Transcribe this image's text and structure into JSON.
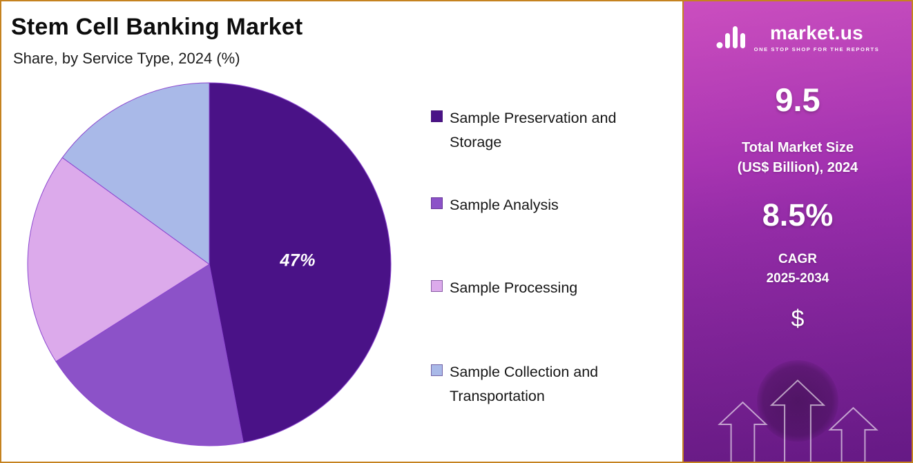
{
  "theme": {
    "border_color": "#c5821f",
    "sidebar_gradient": [
      "#c843bb",
      "#9c2fae",
      "#7a21a0"
    ],
    "pie_stroke": "#8b46cf"
  },
  "header": {
    "title": "Stem Cell Banking Market",
    "subtitle": "Share, by Service Type, 2024 (%)"
  },
  "chart_data": {
    "type": "pie",
    "title": "Stem Cell Banking Market",
    "subtitle": "Share, by Service Type, 2024 (%)",
    "labels": [
      "Sample Preservation and Storage",
      "Sample Analysis",
      "Sample Processing",
      "Sample Collection and Transportation"
    ],
    "values": [
      47,
      19,
      19,
      15
    ],
    "colors": [
      "#4a1287",
      "#8c52c8",
      "#dcaaeb",
      "#a9b9e8"
    ],
    "start_angle_deg": 0,
    "direction": "clockwise",
    "legend_position": "right",
    "data_label": {
      "segment_index": 0,
      "text": "47%"
    }
  },
  "sidebar": {
    "logo_text": "market.us",
    "logo_tagline": "ONE STOP SHOP FOR THE REPORTS",
    "stat1_value": "9.5",
    "stat1_label_line1": "Total Market Size",
    "stat1_label_line2": "(US$ Billion), 2024",
    "stat2_value": "8.5%",
    "stat2_label_line1": "CAGR",
    "stat2_label_line2": "2025-2034",
    "currency_symbol": "$"
  }
}
